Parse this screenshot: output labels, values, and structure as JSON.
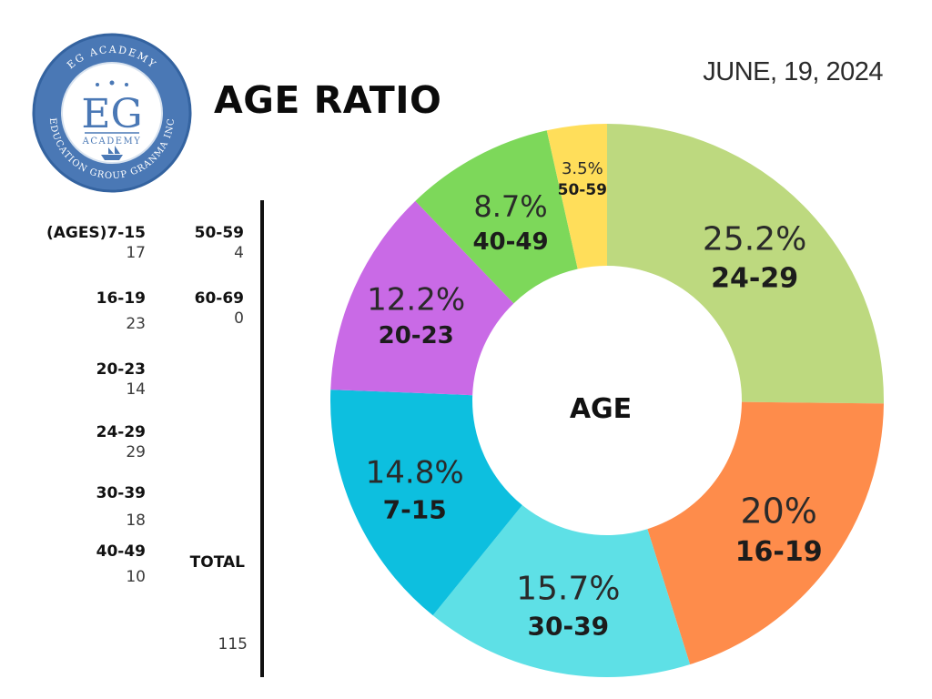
{
  "logo": {
    "arc_top": "EG ACADEMY",
    "monogram": "EG",
    "subtitle": "ACADEMY",
    "arc_bottom": "EDUCATION GROUP GRANMA INC",
    "ring_color": "#4a78b5",
    "ring_border": "#3463a0",
    "inner_color": "#ffffff"
  },
  "title": "AGE RATIO",
  "date": "JUNE, 19, 2024",
  "table": {
    "col1": [
      {
        "label": "(AGES)7-15",
        "value": "17"
      },
      {
        "label": "16-19",
        "value": "23"
      },
      {
        "label": "20-23",
        "value": "14"
      },
      {
        "label": "24-29",
        "value": "29"
      },
      {
        "label": "30-39",
        "value": "18"
      },
      {
        "label": "40-49",
        "value": "10"
      }
    ],
    "col2": [
      {
        "label": "50-59",
        "value": "4"
      },
      {
        "label": "60-69",
        "value": "0"
      }
    ],
    "total_label": "TOTAL",
    "total_value": "115"
  },
  "chart_data": {
    "type": "pie",
    "center_label": "AGE",
    "categories": [
      "24-29",
      "16-19",
      "30-39",
      "7-15",
      "20-23",
      "40-49",
      "50-59"
    ],
    "values": [
      25.2,
      20,
      15.7,
      14.8,
      12.2,
      8.7,
      3.5
    ],
    "labels": [
      "25.2%",
      "20%",
      "15.7%",
      "14.8%",
      "12.2%",
      "8.7%",
      "3.5%"
    ],
    "colors": [
      "#bdd97f",
      "#fe8c4b",
      "#5ee0e6",
      "#0dbfdf",
      "#c96ae6",
      "#7dd85a",
      "#ffde5a"
    ],
    "start_angle_deg": 0,
    "direction": "clockwise"
  }
}
